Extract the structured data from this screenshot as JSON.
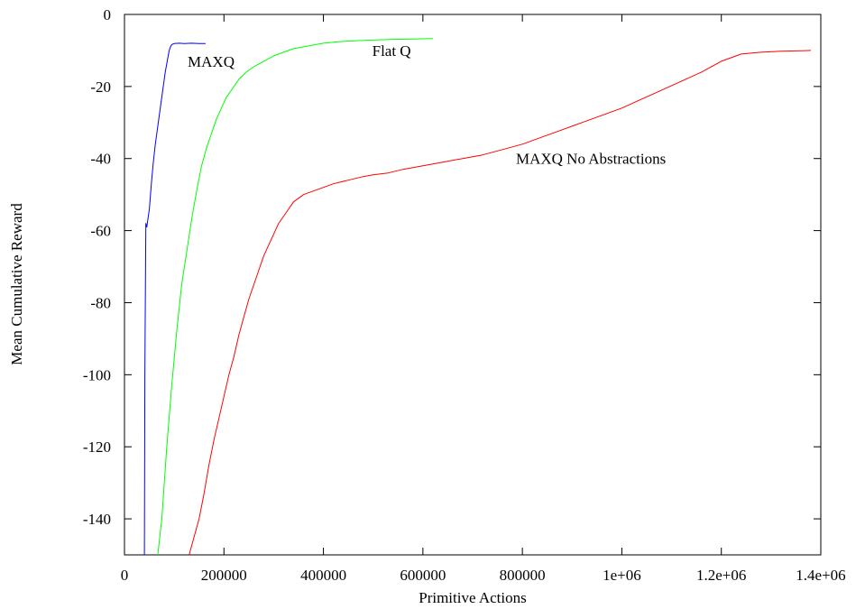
{
  "chart_data": {
    "type": "line",
    "title": "",
    "xlabel": "Primitive Actions",
    "ylabel": "Mean Cumulative Reward",
    "xlim": [
      0,
      1400000
    ],
    "ylim": [
      -150,
      0
    ],
    "grid": false,
    "x_ticks": [
      {
        "value": 0,
        "label": "0"
      },
      {
        "value": 200000,
        "label": "200000"
      },
      {
        "value": 400000,
        "label": "400000"
      },
      {
        "value": 600000,
        "label": "600000"
      },
      {
        "value": 800000,
        "label": "800000"
      },
      {
        "value": 1000000,
        "label": "1e+06"
      },
      {
        "value": 1200000,
        "label": "1.2e+06"
      },
      {
        "value": 1400000,
        "label": "1.4e+06"
      }
    ],
    "y_ticks": [
      {
        "value": 0,
        "label": "0"
      },
      {
        "value": -20,
        "label": "-20"
      },
      {
        "value": -40,
        "label": "-40"
      },
      {
        "value": -60,
        "label": "-60"
      },
      {
        "value": -80,
        "label": "-80"
      },
      {
        "value": -100,
        "label": "-100"
      },
      {
        "value": -120,
        "label": "-120"
      },
      {
        "value": -140,
        "label": "-140"
      }
    ],
    "series": [
      {
        "name": "MAXQ",
        "color": "#0000ff",
        "label_at": [
          127000,
          -14.5
        ],
        "x": [
          40000,
          41000,
          43000,
          45000,
          47000,
          50000,
          54000,
          58000,
          62000,
          66000,
          70000,
          74000,
          78000,
          82000,
          86000,
          90000,
          93000,
          96000,
          100000,
          110000,
          120000,
          135000,
          150000,
          163000
        ],
        "y": [
          -150,
          -100,
          -58,
          -59,
          -57,
          -54,
          -47,
          -41,
          -36,
          -32,
          -28,
          -24,
          -20,
          -16,
          -13,
          -10,
          -8.8,
          -8.3,
          -8.1,
          -8.0,
          -8.1,
          -8.0,
          -8.1,
          -8.1
        ]
      },
      {
        "name": "Flat Q",
        "color": "#00ff00",
        "label_at": [
          498000,
          -11.5
        ],
        "x": [
          67000,
          75000,
          85000,
          95000,
          105000,
          115000,
          125000,
          135000,
          145000,
          155000,
          165000,
          175000,
          185000,
          195000,
          205000,
          215000,
          230000,
          245000,
          260000,
          280000,
          300000,
          320000,
          340000,
          360000,
          380000,
          400000,
          430000,
          460000,
          500000,
          540000,
          580000,
          620000
        ],
        "y": [
          -150,
          -140,
          -120,
          -103,
          -88,
          -75,
          -66,
          -57,
          -49,
          -42,
          -37,
          -33,
          -29,
          -26,
          -23,
          -21,
          -18,
          -16,
          -14.5,
          -13,
          -11.5,
          -10.5,
          -9.5,
          -9,
          -8.5,
          -8,
          -7.6,
          -7.3,
          -7.1,
          -6.9,
          -6.8,
          -6.7
        ]
      },
      {
        "name": "MAXQ No Abstractions",
        "color": "#ff0000",
        "label_at": [
          787000,
          -41.5
        ],
        "x": [
          130000,
          140000,
          150000,
          160000,
          170000,
          180000,
          190000,
          200000,
          210000,
          220000,
          230000,
          240000,
          250000,
          260000,
          270000,
          280000,
          290000,
          300000,
          310000,
          320000,
          330000,
          340000,
          350000,
          360000,
          380000,
          400000,
          420000,
          450000,
          480000,
          500000,
          530000,
          560000,
          600000,
          640000,
          680000,
          720000,
          760000,
          800000,
          840000,
          880000,
          920000,
          960000,
          1000000,
          1040000,
          1080000,
          1120000,
          1160000,
          1200000,
          1240000,
          1280000,
          1320000,
          1360000,
          1380000
        ],
        "y": [
          -150,
          -145,
          -140,
          -133,
          -125,
          -118,
          -112,
          -106,
          -100,
          -95,
          -89,
          -84,
          -79,
          -75,
          -71,
          -67,
          -64,
          -61,
          -58,
          -56,
          -54,
          -52,
          -51,
          -50,
          -49,
          -48,
          -47,
          -46,
          -45,
          -44.5,
          -44,
          -43,
          -42,
          -41,
          -40,
          -39,
          -37.5,
          -36,
          -34,
          -32,
          -30,
          -28,
          -26,
          -23.5,
          -21,
          -18.5,
          -16,
          -13,
          -11,
          -10.5,
          -10.2,
          -10.1,
          -10
        ]
      }
    ]
  }
}
